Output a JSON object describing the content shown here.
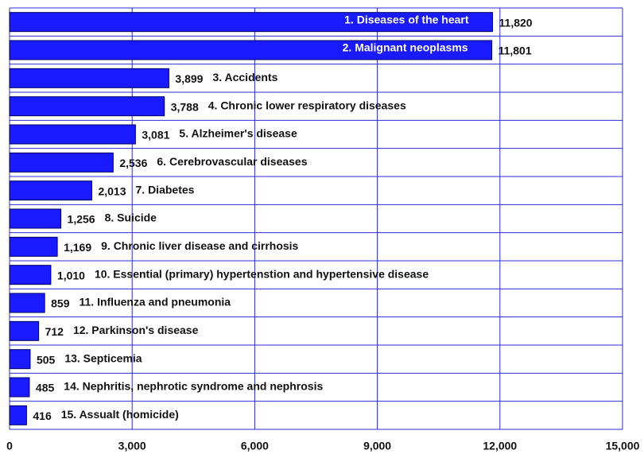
{
  "chart_data": {
    "type": "bar",
    "orientation": "horizontal",
    "categories": [
      "1. Diseases of the heart",
      "2. Malignant neoplasms",
      "3. Accidents",
      "4. Chronic lower respiratory diseases",
      "5. Alzheimer's disease",
      "6. Cerebrovascular diseases",
      "7. Diabetes",
      "8. Suicide",
      "9. Chronic liver disease and cirrhosis",
      "10. Essential (primary) hypertenstion and hypertensive disease",
      "11. Influenza and pneumonia",
      "12. Parkinson's disease",
      "13. Septicemia",
      "14. Nephritis, nephrotic syndrome and nephrosis",
      "15. Assualt (homicide)"
    ],
    "values": [
      11820,
      11801,
      3899,
      3788,
      3081,
      2536,
      2013,
      1256,
      1169,
      1010,
      859,
      712,
      505,
      485,
      416
    ],
    "value_labels": [
      "11,820",
      "11,801",
      "3,899",
      "3,788",
      "3,081",
      "2,536",
      "2,013",
      "1,256",
      "1,169",
      "1,010",
      "859",
      "712",
      "505",
      "485",
      "416"
    ],
    "color": "#1a1aff",
    "xlim": [
      0,
      15000
    ],
    "xticks": [
      0,
      {
        "value": 3000,
        "label": "3,000"
      },
      {
        "value": 6000,
        "label": "6,000"
      },
      {
        "value": 9000,
        "label": "9,000"
      },
      {
        "value": 12000,
        "label": "12,000"
      },
      {
        "value": 15000,
        "label": "15,000"
      }
    ],
    "grid": true
  }
}
